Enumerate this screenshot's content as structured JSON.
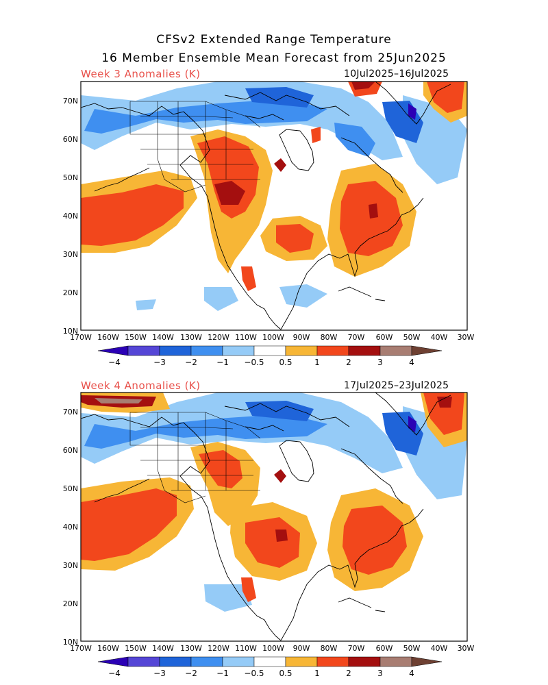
{
  "title_line1": "CFSv2 Extended Range Temperature",
  "title_line2": "16 Member Ensemble Mean Forecast from 25Jun2025",
  "colors": {
    "c_m4": "#2b00b5",
    "c_m3": "#5546d6",
    "c_m2": "#1f64d9",
    "c_m1": "#3f8ff0",
    "c_m05": "#95cbf7",
    "c_p05": "#ffffff",
    "c_p1": "#f7b636",
    "c_p2": "#f2471c",
    "c_p3": "#a40f0f",
    "c_p4": "#a87d72",
    "c_p5": "#6e4032",
    "label_red": "#e8504a"
  },
  "panels": [
    {
      "label": "Week 3 Anomalies (K)",
      "date_range": "10Jul2025–16Jul2025"
    },
    {
      "label": "Week 4 Anomalies (K)",
      "date_range": "17Jul2025–23Jul2025"
    }
  ],
  "axes": {
    "lat_labels": [
      "70N",
      "60N",
      "50N",
      "40N",
      "30N",
      "20N",
      "10N"
    ],
    "lon_labels": [
      "170W",
      "160W",
      "150W",
      "140W",
      "130W",
      "120W",
      "110W",
      "100W",
      "90W",
      "80W",
      "70W",
      "60W",
      "50W",
      "40W",
      "30W"
    ]
  },
  "colorbar": {
    "labels": [
      "−4",
      "−3",
      "−2",
      "−1",
      "−0.5",
      "0.5",
      "1",
      "2",
      "3",
      "4"
    ]
  }
}
